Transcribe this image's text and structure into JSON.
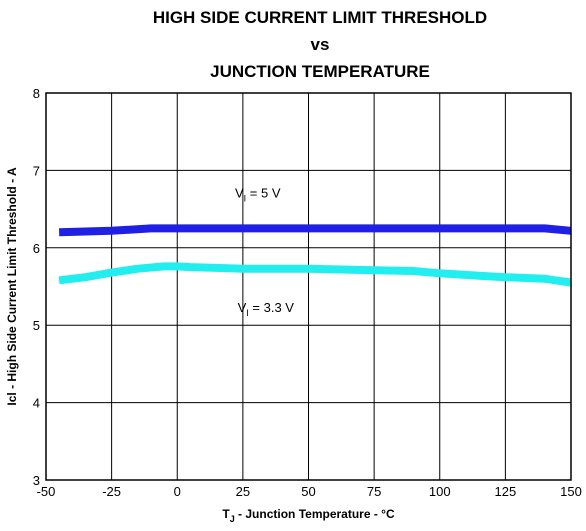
{
  "chart_data": {
    "type": "line",
    "title_lines": [
      "HIGH SIDE CURRENT LIMIT THRESHOLD",
      "vs",
      "JUNCTION TEMPERATURE"
    ],
    "xlabel": {
      "main": "T",
      "sub": "J",
      "rest": " - Junction Temperature - °C"
    },
    "ylabel": "Icl - High Side Current Limit Threshold - A",
    "xlim": [
      -50,
      150
    ],
    "ylim": [
      3,
      8
    ],
    "xticks": [
      -50,
      -25,
      0,
      25,
      50,
      75,
      100,
      125,
      150
    ],
    "yticks": [
      3,
      4,
      5,
      6,
      7,
      8
    ],
    "grid": true,
    "series": [
      {
        "name": "VI = 5 V",
        "color": "#1f1fe6",
        "x": [
          -45,
          -25,
          -10,
          0,
          25,
          50,
          75,
          100,
          125,
          140,
          150
        ],
        "y": [
          6.2,
          6.22,
          6.25,
          6.25,
          6.25,
          6.25,
          6.25,
          6.25,
          6.25,
          6.25,
          6.22
        ]
      },
      {
        "name": "VI = 3.3 V",
        "color": "#22eef0",
        "x": [
          -45,
          -35,
          -25,
          -15,
          -5,
          0,
          5,
          15,
          25,
          50,
          75,
          90,
          100,
          115,
          125,
          140,
          150
        ],
        "y": [
          5.58,
          5.62,
          5.68,
          5.73,
          5.76,
          5.76,
          5.75,
          5.74,
          5.73,
          5.73,
          5.71,
          5.7,
          5.67,
          5.64,
          5.62,
          5.6,
          5.55
        ]
      }
    ],
    "annotations": [
      {
        "main": "V",
        "sub": "I",
        "rest": " = 5 V",
        "x": 22,
        "y": 6.65
      },
      {
        "main": "V",
        "sub": "I",
        "rest": " = 3.3 V",
        "x": 23,
        "y": 5.17
      }
    ]
  }
}
